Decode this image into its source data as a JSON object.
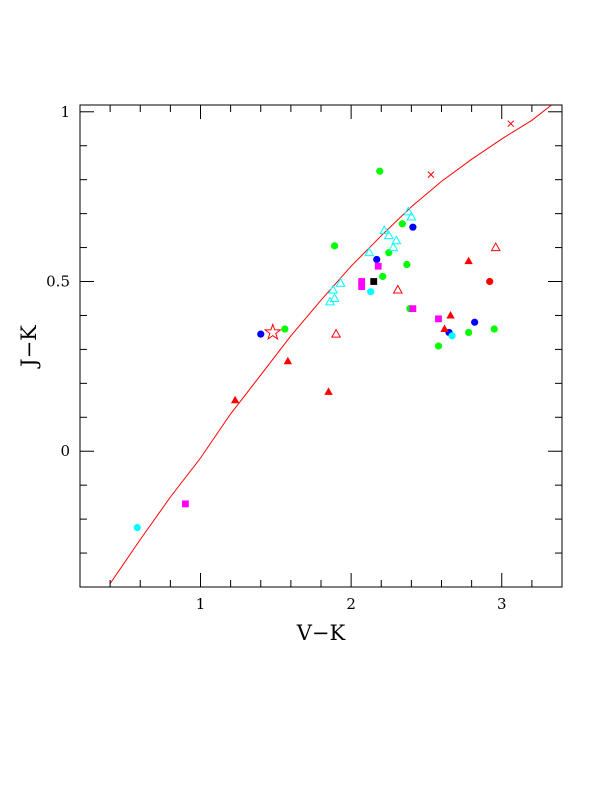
{
  "chart_data": {
    "type": "scatter",
    "xlabel": "V−K",
    "ylabel": "J−K",
    "xlim": [
      0.2,
      3.4
    ],
    "ylim": [
      -0.4,
      1.02
    ],
    "x_ticks": [
      1,
      2,
      3
    ],
    "x_tick_labels": [
      "1",
      "2",
      "3"
    ],
    "y_ticks": [
      0,
      0.5,
      1
    ],
    "y_tick_labels": [
      "0",
      "0.5",
      "1"
    ],
    "grid": false,
    "legend": "none",
    "curve": {
      "color": "#ff0000",
      "points": [
        [
          0.4,
          -0.39
        ],
        [
          0.6,
          -0.26
        ],
        [
          0.8,
          -0.135
        ],
        [
          1.0,
          -0.02
        ],
        [
          1.2,
          0.11
        ],
        [
          1.4,
          0.225
        ],
        [
          1.6,
          0.34
        ],
        [
          1.8,
          0.445
        ],
        [
          2.0,
          0.545
        ],
        [
          2.2,
          0.635
        ],
        [
          2.4,
          0.72
        ],
        [
          2.6,
          0.795
        ],
        [
          2.8,
          0.86
        ],
        [
          3.0,
          0.92
        ],
        [
          3.2,
          0.975
        ],
        [
          3.33,
          1.02
        ]
      ],
      "cross_markers": [
        [
          2.53,
          0.815
        ],
        [
          3.06,
          0.965
        ]
      ]
    },
    "series": [
      {
        "color": "#00ff00",
        "marker": "filled-circle",
        "points": [
          [
            2.19,
            0.825
          ],
          [
            1.89,
            0.605
          ],
          [
            1.56,
            0.36
          ],
          [
            2.34,
            0.67
          ],
          [
            2.25,
            0.585
          ],
          [
            2.21,
            0.515
          ],
          [
            2.37,
            0.55
          ],
          [
            2.39,
            0.42
          ],
          [
            2.78,
            0.35
          ],
          [
            2.95,
            0.36
          ],
          [
            2.58,
            0.31
          ]
        ]
      },
      {
        "color": "#0000ff",
        "marker": "filled-circle",
        "points": [
          [
            1.4,
            0.345
          ],
          [
            2.41,
            0.66
          ],
          [
            2.17,
            0.565
          ],
          [
            2.65,
            0.35
          ],
          [
            2.82,
            0.38
          ]
        ]
      },
      {
        "color": "#00ffff",
        "marker": "filled-circle",
        "points": [
          [
            0.58,
            -0.225
          ],
          [
            2.13,
            0.47
          ],
          [
            2.67,
            0.34
          ]
        ]
      },
      {
        "color": "#00ffff",
        "marker": "open-triangle",
        "points": [
          [
            2.38,
            0.705
          ],
          [
            2.4,
            0.69
          ],
          [
            2.22,
            0.65
          ],
          [
            2.25,
            0.635
          ],
          [
            2.12,
            0.585
          ],
          [
            2.3,
            0.62
          ],
          [
            2.28,
            0.6
          ],
          [
            1.93,
            0.495
          ],
          [
            1.88,
            0.475
          ],
          [
            1.86,
            0.44
          ],
          [
            1.89,
            0.45
          ]
        ]
      },
      {
        "color": "#ff0000",
        "marker": "filled-triangle",
        "points": [
          [
            1.58,
            0.265
          ],
          [
            1.23,
            0.15
          ],
          [
            1.85,
            0.175
          ],
          [
            2.78,
            0.56
          ],
          [
            2.66,
            0.4
          ],
          [
            2.62,
            0.36
          ]
        ]
      },
      {
        "color": "#ff0000",
        "marker": "open-triangle",
        "points": [
          [
            1.9,
            0.345
          ],
          [
            2.96,
            0.6
          ],
          [
            2.31,
            0.475
          ]
        ]
      },
      {
        "color": "#ff0000",
        "marker": "filled-circle",
        "points": [
          [
            2.92,
            0.5
          ]
        ]
      },
      {
        "color": "#ff00ff",
        "marker": "filled-square",
        "points": [
          [
            0.9,
            -0.155
          ],
          [
            2.18,
            0.545
          ],
          [
            2.07,
            0.5
          ],
          [
            2.07,
            0.485
          ],
          [
            2.41,
            0.42
          ],
          [
            2.58,
            0.39
          ]
        ]
      },
      {
        "color": "#000000",
        "marker": "filled-square",
        "points": [
          [
            2.15,
            0.5
          ]
        ]
      },
      {
        "color": "#ff0000",
        "marker": "open-star",
        "points": [
          [
            1.48,
            0.35
          ]
        ]
      }
    ]
  }
}
